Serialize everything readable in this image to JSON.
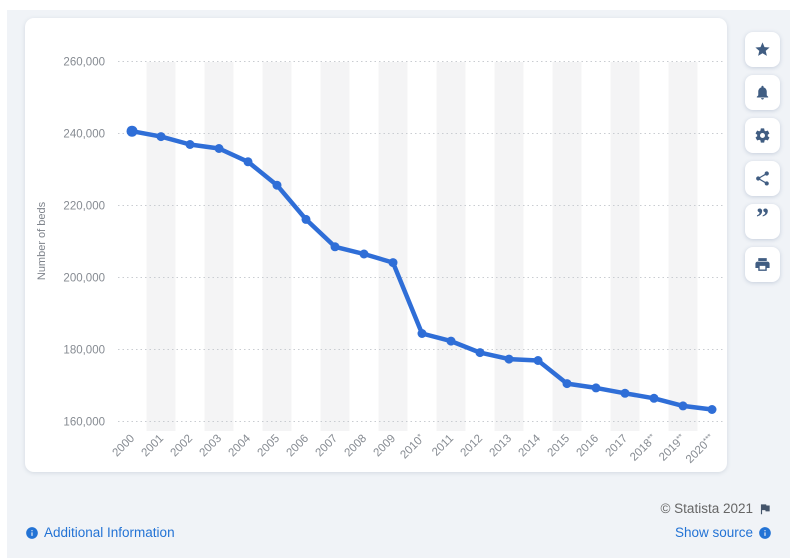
{
  "page": {
    "background_color": "#f0f3f7",
    "card_color": "#ffffff"
  },
  "chart_data": {
    "type": "line",
    "title": "",
    "xlabel": "",
    "ylabel": "Number of beds",
    "categories": [
      "2000",
      "2001",
      "2002",
      "2003",
      "2004",
      "2005",
      "2006",
      "2007",
      "2008",
      "2009",
      "2010*",
      "2011",
      "2012",
      "2013",
      "2014",
      "2015",
      "2016",
      "2017",
      "2018**",
      "2019**",
      "2020***"
    ],
    "values": [
      240500,
      239000,
      236800,
      235700,
      232000,
      225500,
      216000,
      208400,
      206400,
      204000,
      184300,
      182200,
      179000,
      177200,
      176800,
      170400,
      169200,
      167700,
      166300,
      164200,
      163200
    ],
    "ylim": [
      160000,
      260000
    ],
    "ytick_step": 20000,
    "ytick_labels": [
      "160,000",
      "180,000",
      "200,000",
      "220,000",
      "240,000",
      "260,000"
    ],
    "grid": "horizontal-dotted",
    "legend": "none",
    "colors": {
      "line": "#2f6ed7",
      "point": "#2f6ed7",
      "gridline": "#c9ccd1",
      "stripe": "#f4f4f5",
      "tick_text": "#868b92"
    }
  },
  "sidebar": {
    "buttons": [
      {
        "name": "favorite",
        "icon": "star-icon"
      },
      {
        "name": "notifications",
        "icon": "bell-icon"
      },
      {
        "name": "settings",
        "icon": "gear-icon"
      },
      {
        "name": "share",
        "icon": "share-icon"
      },
      {
        "name": "cite",
        "icon": "quote-icon"
      },
      {
        "name": "print",
        "icon": "printer-icon"
      }
    ],
    "icon_color": "#405d82"
  },
  "footer": {
    "additional_info_label": "Additional Information",
    "copyright": "© Statista 2021",
    "show_source_label": "Show source",
    "link_color": "#2373d5"
  }
}
